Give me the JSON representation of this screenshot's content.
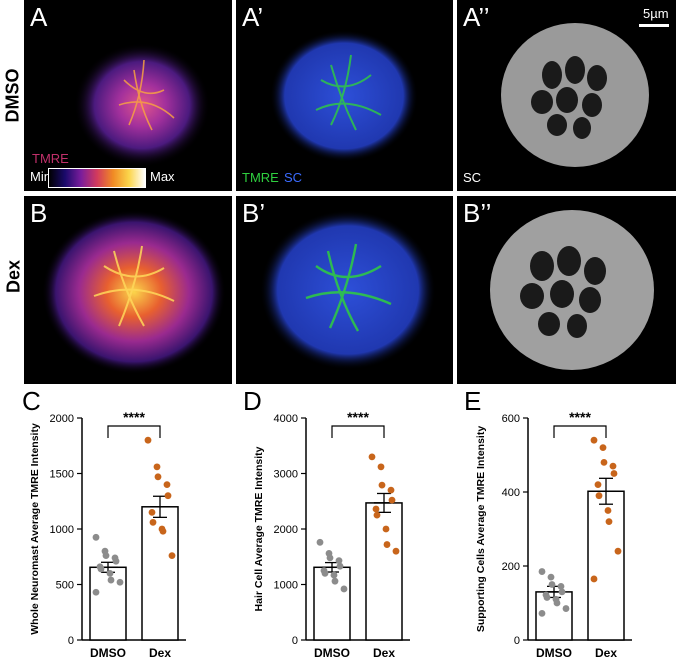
{
  "panels": {
    "A": "A",
    "A1": "A’",
    "A2": "A’’",
    "B": "B",
    "B1": "B’",
    "B2": "B’’",
    "C": "C",
    "D": "D",
    "E": "E"
  },
  "rows": {
    "dmso": "DMSO",
    "dex": "Dex"
  },
  "annotations": {
    "tmre": "TMRE",
    "min": "Min",
    "max": "Max",
    "merge_tmre": "TMRE",
    "merge_sc": "SC",
    "sc": "SC",
    "scalebar": "5µm"
  },
  "colors": {
    "tmre_label": "#c0306a",
    "tmre_green": "#2fcf3f",
    "sc_blue": "#3b6bff",
    "dmso_points": "#8c8c8c",
    "dex_points": "#c8651b"
  },
  "chart_data": [
    {
      "type": "bar",
      "ylabel": "Whole Neuromast Average TMRE Intensity",
      "categories": [
        "DMSO",
        "Dex"
      ],
      "values": [
        655,
        1200
      ],
      "sem": [
        45,
        95
      ],
      "ylim": [
        0,
        2000
      ],
      "yticks": [
        "0",
        "500",
        "1000",
        "1500",
        "2000"
      ],
      "yticks_values": [
        0,
        500,
        1000,
        1500,
        2000
      ],
      "significance": "****",
      "points": [
        [
          925,
          800,
          760,
          740,
          710,
          660,
          640,
          600,
          540,
          520,
          430
        ],
        [
          1800,
          1560,
          1470,
          1400,
          1300,
          1150,
          1060,
          1000,
          980,
          760
        ]
      ]
    },
    {
      "type": "bar",
      "ylabel": "Hair Cell Average TMRE Intensity",
      "categories": [
        "DMSO",
        "Dex"
      ],
      "values": [
        1310,
        2470
      ],
      "sem": [
        85,
        170
      ],
      "ylim": [
        0,
        4000
      ],
      "yticks": [
        "0",
        "1000",
        "2000",
        "3000",
        "4000"
      ],
      "yticks_values": [
        0,
        1000,
        2000,
        3000,
        4000
      ],
      "significance": "****",
      "points": [
        [
          1760,
          1560,
          1480,
          1430,
          1330,
          1250,
          1200,
          1170,
          1060,
          920
        ],
        [
          3300,
          3120,
          2790,
          2700,
          2520,
          2360,
          2250,
          2000,
          1720,
          1600
        ]
      ]
    },
    {
      "type": "bar",
      "ylabel": "Supporting Cells Average TMRE Intensity",
      "categories": [
        "DMSO",
        "Dex"
      ],
      "values": [
        130,
        402
      ],
      "sem": [
        15,
        35
      ],
      "ylim": [
        0,
        600
      ],
      "yticks": [
        "0",
        "200",
        "400",
        "600"
      ],
      "yticks_values": [
        0,
        200,
        400,
        600
      ],
      "significance": "****",
      "points": [
        [
          185,
          170,
          150,
          145,
          130,
          122,
          115,
          110,
          100,
          85,
          72
        ],
        [
          540,
          520,
          480,
          470,
          450,
          420,
          390,
          350,
          320,
          240,
          165
        ]
      ]
    }
  ]
}
